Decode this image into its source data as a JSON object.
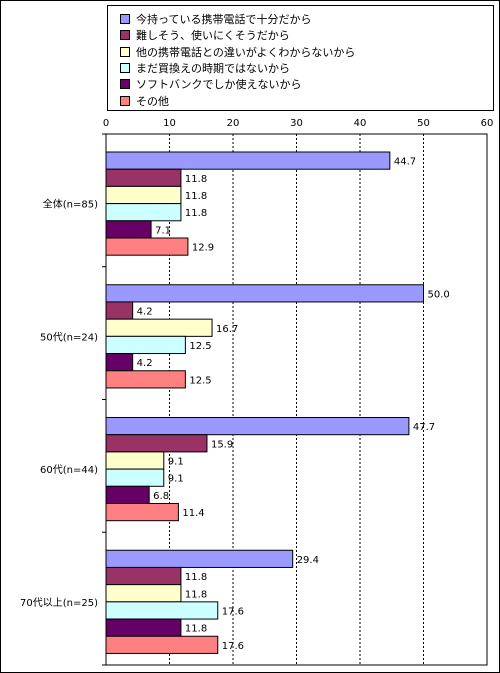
{
  "chart_data": {
    "type": "bar",
    "orientation": "horizontal",
    "categories": [
      "全体(n=85)",
      "50代(n=24)",
      "60代(n=44)",
      "70代以上(n=25)"
    ],
    "series": [
      {
        "name": "今持っている携帯電話で十分だから",
        "color": "#9999ff",
        "values": [
          44.7,
          50.0,
          47.7,
          29.4
        ],
        "labels": [
          "44.7",
          "50.0",
          "47.7",
          "29.4"
        ]
      },
      {
        "name": "難しそう、使いにくそうだから",
        "color": "#993366",
        "values": [
          11.8,
          4.2,
          15.9,
          11.8
        ],
        "labels": [
          "11.8",
          "4.2",
          "15.9",
          "11.8"
        ]
      },
      {
        "name": "他の携帯電話との違いがよくわからないから",
        "color": "#ffffcc",
        "values": [
          11.8,
          16.7,
          9.1,
          11.8
        ],
        "labels": [
          "11.8",
          "16.7",
          "9.1",
          "11.8"
        ]
      },
      {
        "name": "まだ買換えの時期ではないから",
        "color": "#ccffff",
        "values": [
          11.8,
          12.5,
          9.1,
          17.6
        ],
        "labels": [
          "11.8",
          "12.5",
          "9.1",
          "17.6"
        ]
      },
      {
        "name": "ソフトバンクでしか使えないから",
        "color": "#660066",
        "values": [
          7.1,
          4.2,
          6.8,
          11.8
        ],
        "labels": [
          "7.1",
          "4.2",
          "6.8",
          "11.8"
        ]
      },
      {
        "name": "その他",
        "color": "#ff8080",
        "values": [
          12.9,
          12.5,
          11.4,
          17.6
        ],
        "labels": [
          "12.9",
          "12.5",
          "11.4",
          "17.6"
        ]
      }
    ],
    "xlim": [
      0,
      60
    ],
    "xticks": [
      "0",
      "10",
      "20",
      "30",
      "40",
      "50",
      "60"
    ],
    "grid": "vertical dotted",
    "legend_position": "top"
  }
}
